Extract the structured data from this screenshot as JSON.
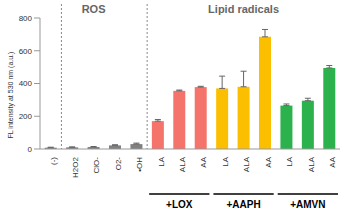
{
  "chart_data": {
    "type": "bar",
    "y_label": "FL intensity at 530 nm (a.u.)",
    "annotations": [
      "ROS",
      "Lipid radicals"
    ],
    "group_labels": [
      "+LOX",
      "+AAPH",
      "+AMVN"
    ],
    "categories": [
      "(-)",
      "H2O2",
      "ClO-",
      "O2-",
      "•OH",
      "LA",
      "ALA",
      "AA",
      "LA",
      "ALA",
      "AA",
      "LA",
      "ALA",
      "AA"
    ],
    "values": [
      8,
      10,
      12,
      22,
      30,
      170,
      355,
      378,
      370,
      380,
      685,
      265,
      295,
      495
    ],
    "errors": [
      3,
      3,
      3,
      4,
      6,
      10,
      5,
      5,
      75,
      95,
      45,
      10,
      15,
      15
    ],
    "colors": [
      "#808080",
      "#808080",
      "#808080",
      "#808080",
      "#808080",
      "#f4736b",
      "#f4736b",
      "#f4736b",
      "#fbbf00",
      "#fbbf00",
      "#fbbf00",
      "#2bb24c",
      "#2bb24c",
      "#2bb24c"
    ],
    "ylim": [
      0,
      800
    ],
    "yticks": [
      0,
      200,
      400,
      600,
      800
    ]
  }
}
